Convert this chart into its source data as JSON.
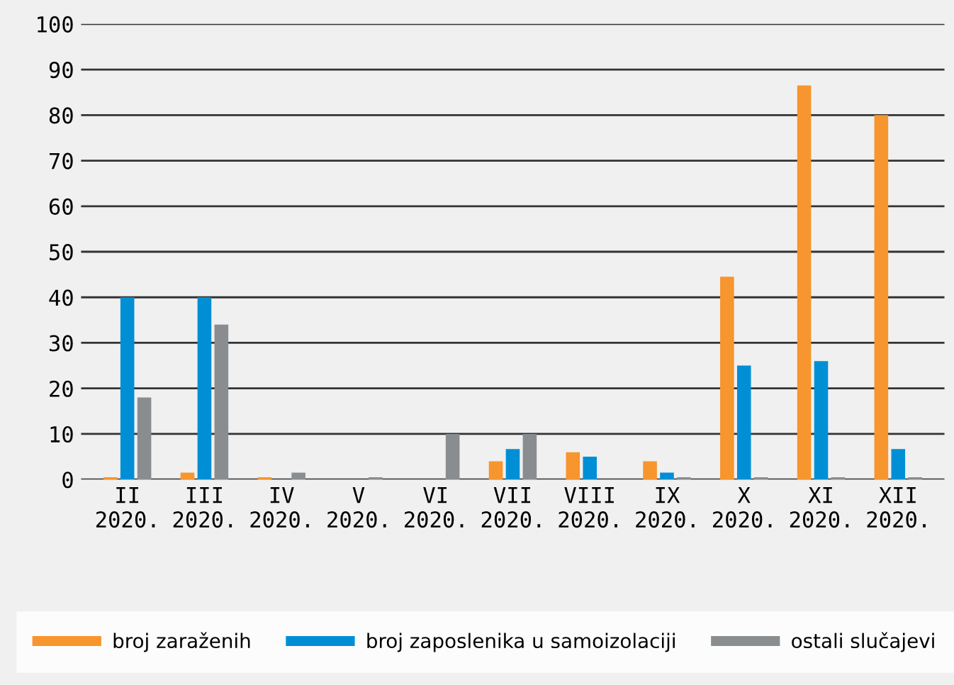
{
  "chart_data": {
    "type": "bar",
    "categories": [
      "II\n2020.",
      "III\n2020.",
      "IV\n2020.",
      "V\n2020.",
      "VI\n2020.",
      "VII\n2020.",
      "VIII\n2020.",
      "IX\n2020.",
      "X\n2020.",
      "XI\n2020.",
      "XII\n2020."
    ],
    "series": [
      {
        "name": "broj zaraženih",
        "color": "#f7952e",
        "values": [
          0.5,
          1.5,
          0.5,
          0,
          0,
          4,
          6,
          4,
          44.5,
          86.5,
          80
        ]
      },
      {
        "name": "broj zaposlenika u samoizolaciji",
        "color": "#008fd5",
        "values": [
          40,
          40,
          0,
          0,
          0,
          6.7,
          5,
          1.5,
          25,
          26,
          6.7
        ]
      },
      {
        "name": "ostali slučajevi",
        "color": "#8a8d8f",
        "values": [
          18,
          34,
          1.5,
          0.5,
          10,
          10,
          0,
          0.5,
          0.5,
          0.5,
          0.5
        ]
      }
    ],
    "ylim": [
      0,
      100
    ],
    "yticks": [
      0,
      10,
      20,
      30,
      40,
      50,
      60,
      70,
      80,
      90,
      100
    ],
    "grid": "y",
    "legend": "bottom"
  }
}
